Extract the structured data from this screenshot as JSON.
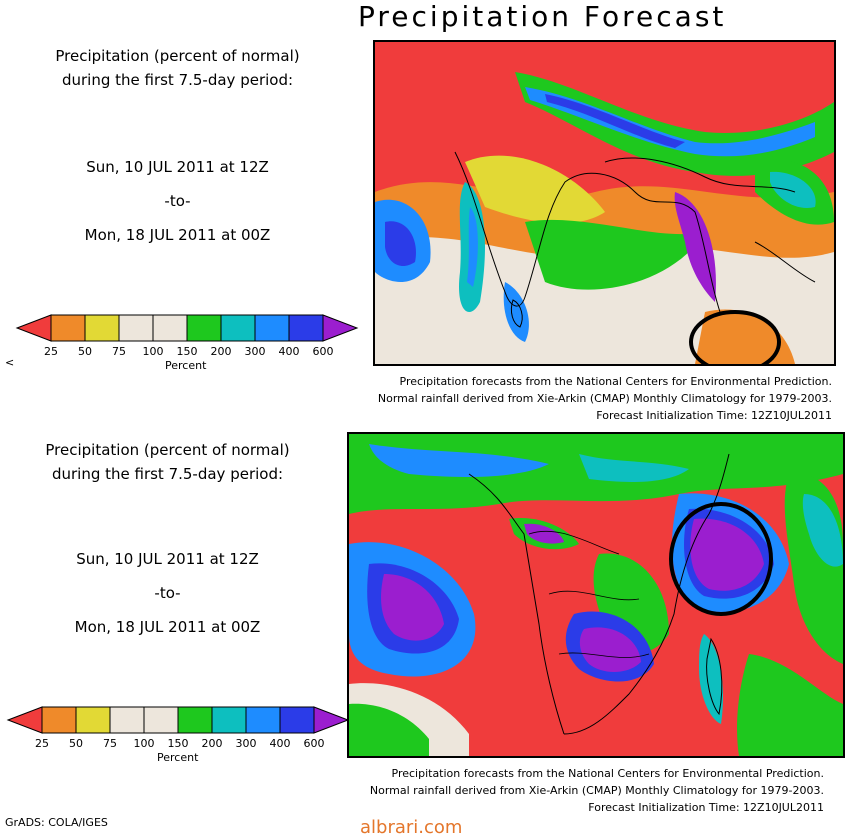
{
  "title": "Precipitation Forecast",
  "panels": [
    {
      "heading_line1": "Precipitation (percent of normal)",
      "heading_line2": "during the first 7.5-day period:",
      "start": "Sun, 10 JUL 2011 at 12Z",
      "separator": "-to-",
      "end": "Mon, 18 JUL 2011 at 00Z",
      "credit_line1": "Precipitation forecasts from the National Centers for Environmental Prediction.",
      "credit_line2": "Normal rainfall derived from Xie-Arkin (CMAP) Monthly Climatology for 1979-2003.",
      "credit_line3": "Forecast Initialization Time: 12Z10JUL2011",
      "legend_tick_labels": [
        "25",
        "50",
        "75",
        "100",
        "150",
        "200",
        "300",
        "400",
        "600"
      ],
      "legend_title": "Percent"
    },
    {
      "heading_line1": "Precipitation (percent of normal)",
      "heading_line2": "during the first 7.5-day period:",
      "start": "Sun, 10 JUL 2011 at 12Z",
      "separator": "-to-",
      "end": "Mon, 18 JUL 2011 at 00Z",
      "credit_line1": "Precipitation forecasts from the National Centers for Environmental Prediction.",
      "credit_line2": "Normal rainfall derived from Xie-Arkin (CMAP) Monthly Climatology for 1979-2003.",
      "credit_line3": "Forecast Initialization Time: 12Z10JUL2011",
      "legend_tick_labels": [
        "25",
        "50",
        "75",
        "100",
        "150",
        "200",
        "300",
        "400",
        "600"
      ],
      "legend_title": "Percent"
    }
  ],
  "legend_colors": [
    "#f03c3c",
    "#ef8a2a",
    "#e2d935",
    "#ede6dc",
    "#ede6dc",
    "#1ec81e",
    "#0dbfbf",
    "#1e8cff",
    "#2b3ce8",
    "#9b1ecf"
  ],
  "stray_mark": "<",
  "footer": "GrADS: COLA/IGES",
  "watermark": "albrari.com"
}
